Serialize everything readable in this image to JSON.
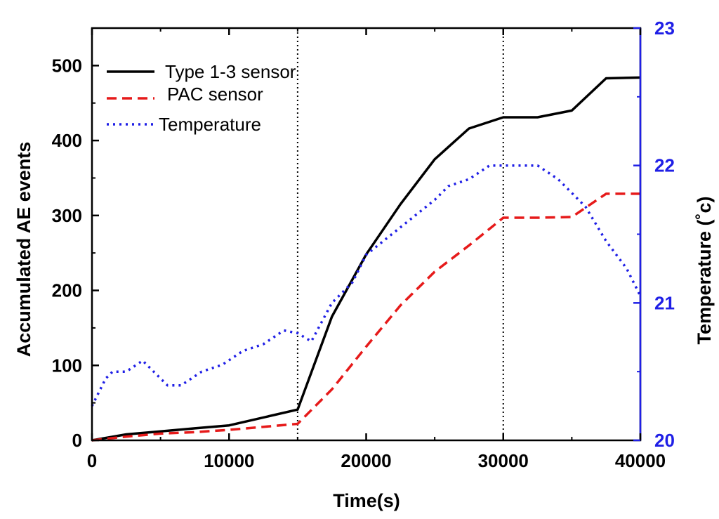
{
  "chart_data": {
    "type": "line",
    "xlabel": "Time(s)",
    "ylabel": "Accumulated AE events",
    "y2label": "Temperature (˚c)",
    "xlim": [
      0,
      40000
    ],
    "ylim": [
      0,
      550
    ],
    "y2lim": [
      20,
      23
    ],
    "x_ticks": [
      0,
      10000,
      20000,
      30000,
      40000
    ],
    "y_ticks": [
      0,
      100,
      200,
      300,
      400,
      500
    ],
    "y2_ticks": [
      20,
      21,
      22,
      23
    ],
    "vlines": [
      15000,
      30000
    ],
    "legend_position": "top-left",
    "series": [
      {
        "name": "Type 1-3 sensor",
        "axis": "left",
        "color": "#000000",
        "style": "solid",
        "x": [
          0,
          2500,
          5000,
          7500,
          10000,
          15000,
          17500,
          20000,
          22500,
          25000,
          27500,
          30000,
          32500,
          35000,
          37500,
          40000
        ],
        "y": [
          0,
          8,
          12,
          16,
          20,
          41,
          165,
          248,
          315,
          375,
          416,
          431,
          431,
          440,
          483,
          484
        ]
      },
      {
        "name": "PAC sensor",
        "axis": "left",
        "color": "#e61a1a",
        "style": "dashed",
        "x": [
          0,
          2500,
          5000,
          7500,
          10000,
          15000,
          17500,
          20000,
          22500,
          25000,
          27500,
          30000,
          32500,
          35000,
          37500,
          40000
        ],
        "y": [
          0,
          5,
          9,
          11,
          14,
          22,
          68,
          125,
          180,
          225,
          260,
          297,
          297,
          298,
          329,
          329
        ]
      },
      {
        "name": "Temperature",
        "axis": "right",
        "color": "#1f1fe6",
        "style": "dotted",
        "x": [
          0,
          500,
          1000,
          1500,
          2500,
          3700,
          4500,
          5500,
          6500,
          8000,
          9500,
          11000,
          12500,
          14000,
          15000,
          16000,
          17500,
          19000,
          20000,
          22500,
          25000,
          26000,
          27500,
          29000,
          30000,
          31000,
          32500,
          34000,
          35000,
          36000,
          37500,
          39000,
          40000
        ],
        "y": [
          20.25,
          20.35,
          20.45,
          20.5,
          20.5,
          20.58,
          20.5,
          20.4,
          20.4,
          20.5,
          20.55,
          20.65,
          20.7,
          20.8,
          20.78,
          20.72,
          21.0,
          21.15,
          21.35,
          21.55,
          21.75,
          21.85,
          21.9,
          22.0,
          22.0,
          22.0,
          22.0,
          21.9,
          21.8,
          21.7,
          21.45,
          21.25,
          21.05
        ]
      }
    ]
  }
}
